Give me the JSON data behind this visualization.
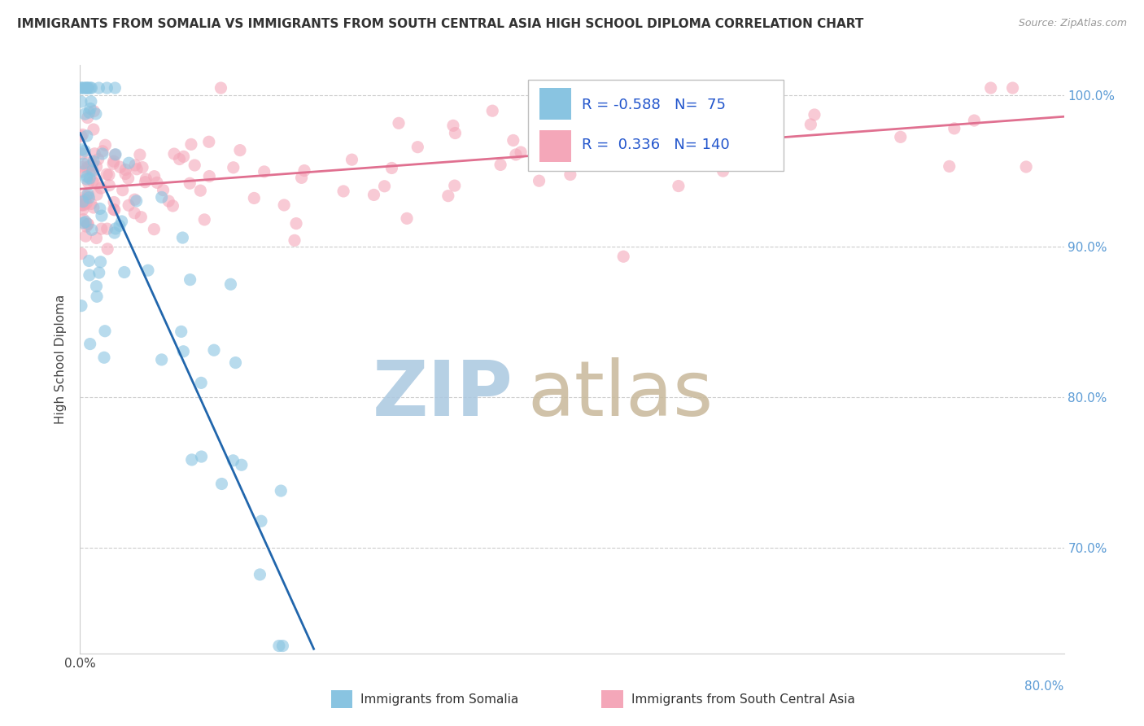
{
  "title": "IMMIGRANTS FROM SOMALIA VS IMMIGRANTS FROM SOUTH CENTRAL ASIA HIGH SCHOOL DIPLOMA CORRELATION CHART",
  "source": "Source: ZipAtlas.com",
  "ylabel": "High School Diploma",
  "legend_label1": "Immigrants from Somalia",
  "legend_label2": "Immigrants from South Central Asia",
  "r1": "-0.588",
  "n1": "75",
  "r2": "0.336",
  "n2": "140",
  "xmin": 0.0,
  "xmax": 0.8,
  "ymin": 0.63,
  "ymax": 1.02,
  "color1": "#89c4e1",
  "color2": "#f4a7b9",
  "trendline1_color": "#2166ac",
  "trendline2_color": "#e07090",
  "watermark_zip_color": "#aac8e0",
  "watermark_atlas_color": "#c8b89a",
  "background_color": "#ffffff",
  "grid_color": "#cccccc",
  "ytick_color": "#5b9bd5",
  "ytick_labels": [
    "100.0%",
    "90.0%",
    "80.0%",
    "70.0%"
  ],
  "ytick_values": [
    1.0,
    0.9,
    0.8,
    0.7
  ],
  "title_fontsize": 11,
  "source_fontsize": 9
}
